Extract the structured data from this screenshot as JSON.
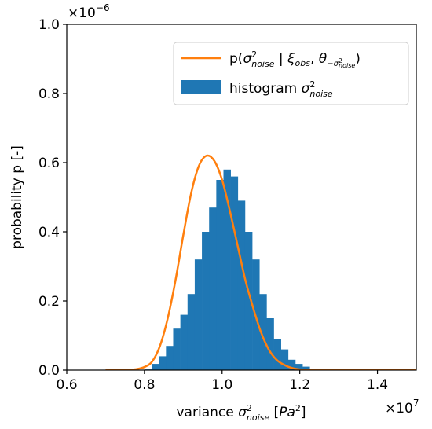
{
  "chart_data": {
    "type": "bar",
    "xlabel": "variance σ²noise [Pa²]",
    "ylabel": "probability p [-]",
    "x_multiplier": "×10^7",
    "y_multiplier": "×10^-6",
    "xlim": [
      0.6,
      1.5
    ],
    "ylim": [
      0.0,
      1.0
    ],
    "x_ticks": [
      "0.6",
      "0.8",
      "1.0",
      "1.2",
      "1.4"
    ],
    "y_ticks": [
      "0.0",
      "0.2",
      "0.4",
      "0.6",
      "0.8",
      "1.0"
    ],
    "x_tick_values": [
      0.6,
      0.8,
      1.0,
      1.2,
      1.4
    ],
    "y_tick_values": [
      0.0,
      0.2,
      0.4,
      0.6,
      0.8,
      1.0
    ],
    "legend_position": "upper right",
    "series": [
      {
        "name": "p(σ²noise | ξobs, θ−σ²noise)",
        "kind": "line",
        "color": "#ff7f0e",
        "x": [
          0.7,
          0.74,
          0.76,
          0.78,
          0.8,
          0.82,
          0.84,
          0.86,
          0.88,
          0.9,
          0.92,
          0.94,
          0.96,
          0.98,
          1.0,
          1.02,
          1.04,
          1.06,
          1.08,
          1.1,
          1.12,
          1.14,
          1.16,
          1.18,
          1.2,
          1.22,
          1.24,
          1.26,
          1.3,
          1.4,
          1.5
        ],
        "y": [
          0.0,
          0.0,
          0.001,
          0.003,
          0.009,
          0.025,
          0.07,
          0.15,
          0.26,
          0.39,
          0.51,
          0.59,
          0.62,
          0.605,
          0.55,
          0.46,
          0.36,
          0.26,
          0.18,
          0.11,
          0.06,
          0.03,
          0.015,
          0.006,
          0.002,
          0.001,
          0.0,
          0.0,
          0.0,
          0.0,
          0.0
        ]
      },
      {
        "name": "histogram σ²noise",
        "kind": "histogram",
        "color": "#1f77b4",
        "bin_width": 0.0185,
        "bin_starts": [
          0.8,
          0.8185,
          0.837,
          0.8555,
          0.874,
          0.8925,
          0.911,
          0.9295,
          0.948,
          0.9665,
          0.985,
          1.0035,
          1.022,
          1.0405,
          1.059,
          1.0775,
          1.096,
          1.1145,
          1.133,
          1.1515,
          1.17,
          1.1885,
          1.207,
          1.2255
        ],
        "values": [
          0.002,
          0.018,
          0.04,
          0.07,
          0.12,
          0.16,
          0.22,
          0.32,
          0.4,
          0.47,
          0.55,
          0.58,
          0.56,
          0.49,
          0.4,
          0.32,
          0.22,
          0.15,
          0.09,
          0.06,
          0.03,
          0.018,
          0.01,
          0.003
        ]
      }
    ]
  }
}
